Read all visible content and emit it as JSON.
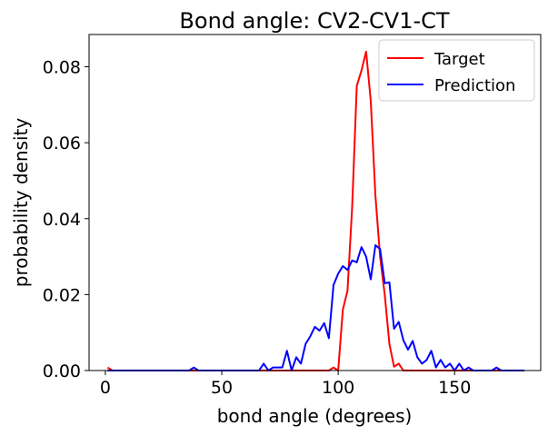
{
  "chart_data": {
    "type": "line",
    "title": "Bond angle: CV2-CV1-CT",
    "xlabel": "bond angle (degrees)",
    "ylabel": "probability density",
    "xlim": [
      -7,
      187
    ],
    "ylim": [
      0,
      0.0885
    ],
    "xticks": [
      0,
      50,
      100,
      150
    ],
    "yticks": [
      0.0,
      0.02,
      0.04,
      0.06,
      0.08
    ],
    "ytick_labels": [
      "0.00",
      "0.02",
      "0.04",
      "0.06",
      "0.08"
    ],
    "legend_position": "top-right",
    "grid": false,
    "series": [
      {
        "name": "Target",
        "color": "#ff0000",
        "x": [
          1,
          3,
          5,
          10,
          20,
          30,
          40,
          50,
          60,
          70,
          80,
          90,
          96,
          98,
          100,
          102,
          104,
          106,
          108,
          110,
          112,
          114,
          116,
          118,
          120,
          122,
          124,
          126,
          128,
          130,
          140,
          150,
          160,
          170,
          180
        ],
        "y": [
          0.0008,
          0.0,
          0.0,
          0.0,
          0.0,
          0.0,
          0.0,
          0.0,
          0.0,
          0.0,
          0.0,
          0.0,
          0.0,
          0.0008,
          0.0,
          0.016,
          0.021,
          0.043,
          0.075,
          0.079,
          0.084,
          0.071,
          0.046,
          0.03,
          0.02,
          0.007,
          0.001,
          0.0018,
          0.0,
          0.0,
          0.0,
          0.0,
          0.0,
          0.0,
          0.0
        ]
      },
      {
        "name": "Prediction",
        "color": "#0000ff",
        "x": [
          1,
          3,
          5,
          10,
          20,
          30,
          36,
          38,
          40,
          50,
          60,
          66,
          68,
          70,
          72,
          74,
          76,
          78,
          80,
          82,
          84,
          86,
          88,
          90,
          92,
          94,
          96,
          98,
          100,
          102,
          104,
          106,
          108,
          110,
          112,
          114,
          116,
          118,
          120,
          122,
          124,
          126,
          128,
          130,
          132,
          134,
          136,
          138,
          140,
          142,
          144,
          146,
          148,
          150,
          152,
          154,
          156,
          158,
          160,
          162,
          164,
          166,
          168,
          170,
          172,
          174,
          176,
          178,
          180
        ],
        "y": [
          0.0,
          0.0,
          0.0,
          0.0,
          0.0,
          0.0,
          0.0,
          0.0008,
          0.0,
          0.0,
          0.0,
          0.0,
          0.0018,
          0.0,
          0.0008,
          0.0008,
          0.0008,
          0.0052,
          0.0,
          0.0035,
          0.0018,
          0.007,
          0.009,
          0.0115,
          0.0105,
          0.0125,
          0.0085,
          0.0225,
          0.0255,
          0.0275,
          0.0265,
          0.029,
          0.0285,
          0.0325,
          0.03,
          0.024,
          0.033,
          0.032,
          0.023,
          0.0232,
          0.011,
          0.0128,
          0.008,
          0.0055,
          0.0078,
          0.0035,
          0.0018,
          0.0028,
          0.0052,
          0.0008,
          0.0028,
          0.0008,
          0.0018,
          0.0,
          0.0018,
          0.0,
          0.0008,
          0.0,
          0.0,
          0.0,
          0.0,
          0.0,
          0.0008,
          0.0,
          0.0,
          0.0,
          0.0,
          0.0,
          0.0
        ]
      }
    ]
  }
}
